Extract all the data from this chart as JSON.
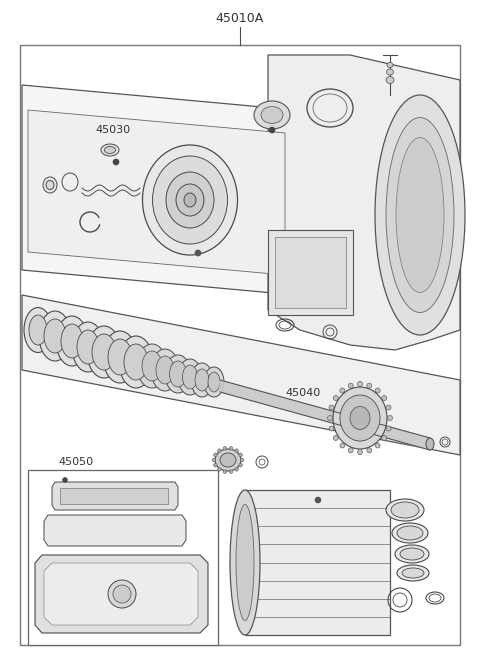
{
  "title": "45010A",
  "bg_color": "#ffffff",
  "lc": "#4a4a4a",
  "figsize": [
    4.8,
    6.55
  ],
  "dpi": 100,
  "label_45030": "45030",
  "label_45040": "45040",
  "label_45050": "45050"
}
